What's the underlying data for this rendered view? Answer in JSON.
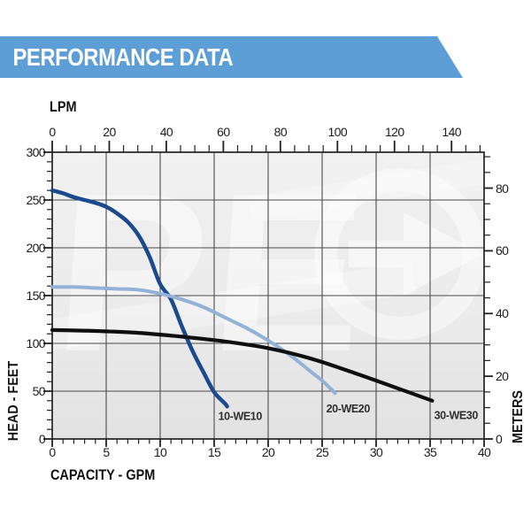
{
  "header": {
    "title": "PERFORMANCE DATA"
  },
  "colors": {
    "banner": "#5d9ed6",
    "plot_bg_top": "#f1f1f1",
    "plot_bg_bottom": "#e2e2e2",
    "grid": "#4c4c4c",
    "border": "#2d2d2d",
    "tick": "#222222",
    "tick_text": "#1b1b1b",
    "watermark": "#ffffff",
    "series_label_text": "#2f2f2f"
  },
  "watermark": {
    "letters": "PE",
    "arrow": "circle-arrow-right"
  },
  "chart_data": {
    "type": "line",
    "title": "PERFORMANCE DATA",
    "x_axis_bottom": {
      "label": "CAPACITY - GPM",
      "unit": "GPM",
      "range": [
        0,
        40
      ],
      "major_ticks": [
        0,
        5,
        10,
        15,
        20,
        25,
        30,
        35,
        40
      ],
      "minor_step": 1
    },
    "x_axis_top": {
      "label": "LPM",
      "unit": "LPM",
      "range": [
        0,
        151.4
      ],
      "major_ticks": [
        0,
        20,
        40,
        60,
        80,
        100,
        120,
        140
      ],
      "minor_step": 5,
      "lpm_per_gpm": 3.78541
    },
    "y_axis_left": {
      "label": "HEAD - FEET",
      "unit": "feet",
      "range": [
        0,
        300
      ],
      "major_ticks": [
        300,
        250,
        200,
        150,
        100,
        50,
        0
      ],
      "minor_step": 10
    },
    "y_axis_right": {
      "label": "METERS",
      "unit": "meters",
      "range": [
        0,
        91.4
      ],
      "major_ticks": [
        80,
        60,
        40,
        20,
        0
      ],
      "minor_step": 5,
      "feet_per_meter": 3.28084
    },
    "grid": {
      "x_step_gpm": 5,
      "y_step_feet": 50,
      "grid_on": true
    },
    "series": [
      {
        "name": "10-WE10",
        "color": "#1c4a8e",
        "width": 4.5,
        "points_gpm_feet": [
          [
            0,
            260
          ],
          [
            1,
            257
          ],
          [
            2,
            253
          ],
          [
            3,
            250
          ],
          [
            4,
            247
          ],
          [
            5,
            243
          ],
          [
            6,
            236
          ],
          [
            7,
            227
          ],
          [
            8,
            213
          ],
          [
            9,
            191
          ],
          [
            10,
            162
          ],
          [
            11,
            146
          ],
          [
            12,
            118
          ],
          [
            13,
            92
          ],
          [
            14,
            70
          ],
          [
            15,
            49
          ],
          [
            16,
            37
          ],
          [
            16.2,
            34
          ]
        ],
        "label_anchor_gpm_feet": [
          17.4,
          23.5
        ]
      },
      {
        "name": "20-WE20",
        "color": "#93b2d8",
        "width": 4,
        "points_gpm_feet": [
          [
            0,
            159
          ],
          [
            2,
            159
          ],
          [
            4,
            158
          ],
          [
            6,
            157
          ],
          [
            8,
            156
          ],
          [
            10,
            152
          ],
          [
            12,
            146
          ],
          [
            14,
            138
          ],
          [
            16,
            127
          ],
          [
            18,
            116
          ],
          [
            20,
            103
          ],
          [
            22,
            88
          ],
          [
            24,
            70
          ],
          [
            25,
            61
          ],
          [
            26.2,
            48
          ]
        ],
        "label_anchor_gpm_feet": [
          27.4,
          31.5
        ]
      },
      {
        "name": "30-WE30",
        "color": "#0f0f0f",
        "width": 4.2,
        "points_gpm_feet": [
          [
            0,
            114
          ],
          [
            4,
            113
          ],
          [
            8,
            111
          ],
          [
            12,
            107
          ],
          [
            16,
            102
          ],
          [
            20,
            95
          ],
          [
            24,
            84
          ],
          [
            28,
            69
          ],
          [
            32,
            53
          ],
          [
            35.2,
            40
          ]
        ],
        "label_anchor_gpm_feet": [
          37.4,
          24.5
        ]
      }
    ]
  }
}
